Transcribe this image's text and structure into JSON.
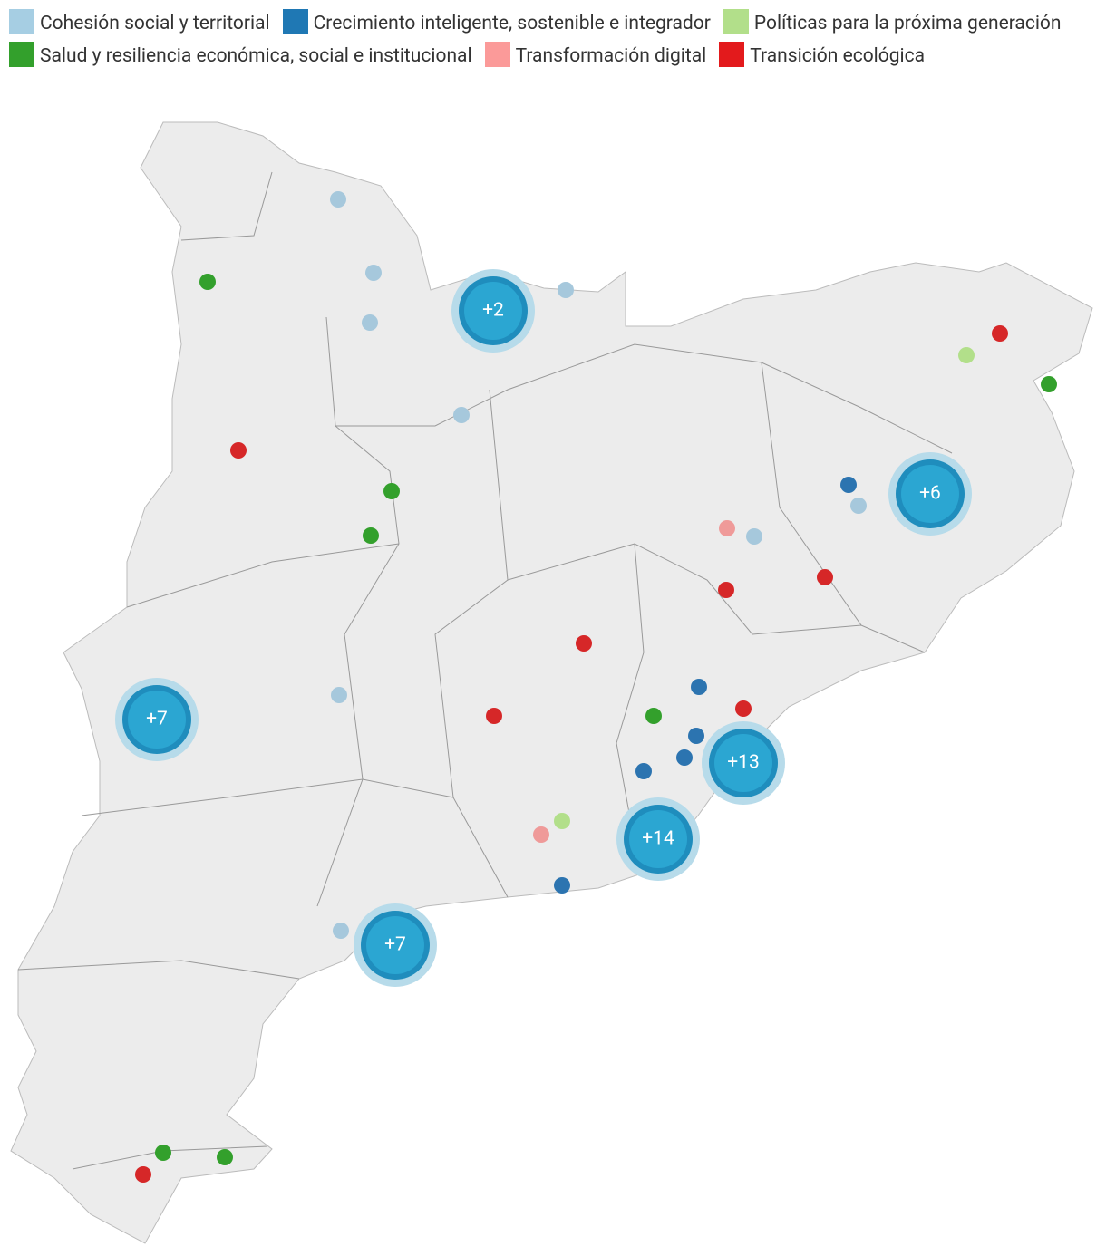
{
  "legend": [
    {
      "name": "Cohesión social y territorial",
      "color": "#a6cee3"
    },
    {
      "name": "Crecimiento inteligente, sostenible e integrador",
      "color": "#1f78b4"
    },
    {
      "name": "Políticas para la próxima generación",
      "color": "#b2df8a"
    },
    {
      "name": "Salud y resiliencia económica, social e institucional",
      "color": "#33a02c"
    },
    {
      "name": "Transformación digital",
      "color": "#fb9a99"
    },
    {
      "name": "Transición ecológica",
      "color": "#e31a1c"
    }
  ],
  "clusters": [
    {
      "label": "+2"
    },
    {
      "label": "+6"
    },
    {
      "label": "+7"
    },
    {
      "label": "+13"
    },
    {
      "label": "+14"
    },
    {
      "label": "+7"
    }
  ]
}
